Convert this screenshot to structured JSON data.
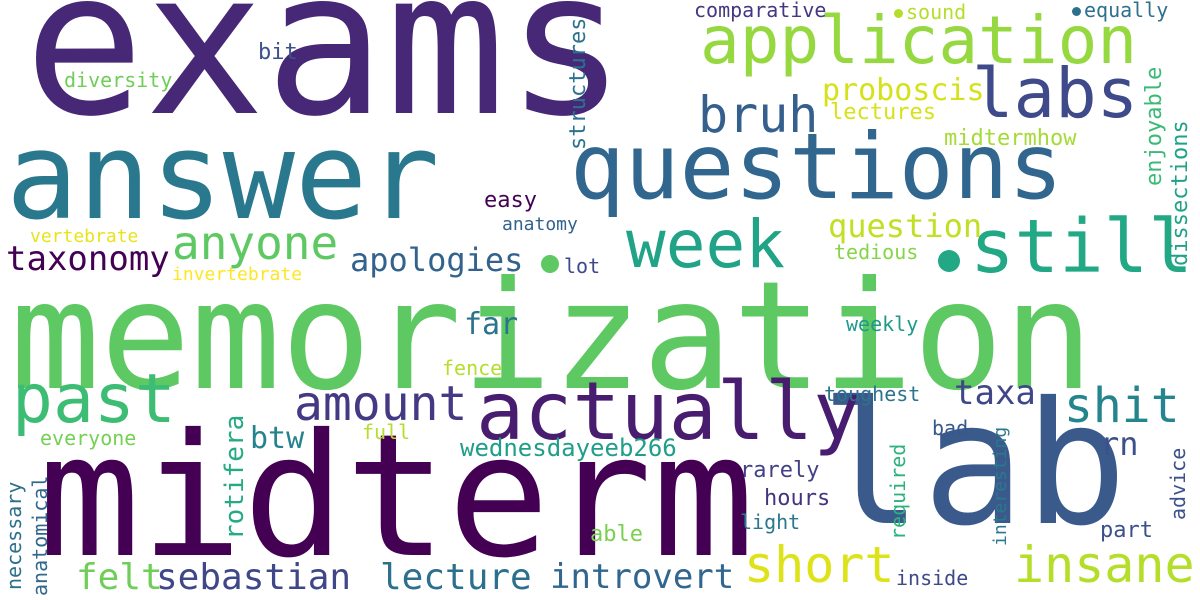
{
  "words": [
    {
      "text": "exams",
      "color": "#472877"
    },
    {
      "text": "answer",
      "color": "#2a788e"
    },
    {
      "text": "memorization",
      "color": "#5ec962"
    },
    {
      "text": "midterm",
      "color": "#440154"
    },
    {
      "text": "lab",
      "color": "#3b5a8c"
    },
    {
      "text": "questions",
      "color": "#31668e"
    },
    {
      "text": "application",
      "color": "#95d840"
    },
    {
      "text": "labs",
      "color": "#3e4a89"
    },
    {
      "text": "still",
      "color": "#22a884"
    },
    {
      "text": "week",
      "color": "#20a386"
    },
    {
      "text": "actually",
      "color": "#481d6f"
    },
    {
      "text": "past",
      "color": "#3dbc74"
    },
    {
      "text": "anyone",
      "color": "#5ec962"
    },
    {
      "text": "bruh",
      "color": "#35608d"
    },
    {
      "text": "amount",
      "color": "#443983"
    },
    {
      "text": "shit",
      "color": "#25858e"
    },
    {
      "text": "insane",
      "color": "#b5de2b"
    },
    {
      "text": "short",
      "color": "#dde318"
    },
    {
      "text": "taxonomy",
      "color": "#440154"
    },
    {
      "text": "apologies",
      "color": "#33638d"
    },
    {
      "text": "question",
      "color": "#c2df23"
    },
    {
      "text": "proboscis",
      "color": "#d5e21a"
    },
    {
      "text": "lecture",
      "color": "#2d708e"
    },
    {
      "text": "introvert",
      "color": "#31668e"
    },
    {
      "text": "sebastian",
      "color": "#3f4788"
    },
    {
      "text": "felt",
      "color": "#6ece58"
    },
    {
      "text": "taxa",
      "color": "#3f4788"
    },
    {
      "text": "far",
      "color": "#2c738e"
    },
    {
      "text": "btw",
      "color": "#26828e"
    },
    {
      "text": "rn",
      "color": "#3b518b"
    },
    {
      "text": "wednesdayeeb266",
      "color": "#1f9e89"
    },
    {
      "text": "lectures",
      "color": "#d8e219"
    },
    {
      "text": "midtermhow",
      "color": "#a5db36"
    },
    {
      "text": "structures",
      "color": "#2c728e"
    },
    {
      "text": "enjoyable",
      "color": "#3aba76"
    },
    {
      "text": "dissections",
      "color": "#1fa287"
    },
    {
      "text": "comparative",
      "color": "#453781"
    },
    {
      "text": "sound",
      "color": "#b5de2b"
    },
    {
      "text": "equally",
      "color": "#2d708e"
    },
    {
      "text": "bit",
      "color": "#3b528b"
    },
    {
      "text": "diversity",
      "color": "#6ece58"
    },
    {
      "text": "easy",
      "color": "#440154"
    },
    {
      "text": "anatomy",
      "color": "#33638d"
    },
    {
      "text": "vertebrate",
      "color": "#e8e419"
    },
    {
      "text": "invertebrate",
      "color": "#fde725"
    },
    {
      "text": "lot",
      "color": "#3e4989"
    },
    {
      "text": "tedious",
      "color": "#86d549"
    },
    {
      "text": "weekly",
      "color": "#1f9a8a"
    },
    {
      "text": "toughest",
      "color": "#2c738e"
    },
    {
      "text": "bad",
      "color": "#38588c"
    },
    {
      "text": "rarely",
      "color": "#424086"
    },
    {
      "text": "hours",
      "color": "#46337f"
    },
    {
      "text": "light",
      "color": "#2a788e"
    },
    {
      "text": "part",
      "color": "#3b518b"
    },
    {
      "text": "advice",
      "color": "#3b528b"
    },
    {
      "text": "interesting",
      "color": "#2a788e"
    },
    {
      "text": "required",
      "color": "#2db27d"
    },
    {
      "text": "rotifera",
      "color": "#25ab82"
    },
    {
      "text": "necessary",
      "color": "#2d708e"
    },
    {
      "text": "anatomical",
      "color": "#31688e"
    },
    {
      "text": "everyone",
      "color": "#75d054"
    },
    {
      "text": "full",
      "color": "#b5de2b"
    },
    {
      "text": "fence",
      "color": "#b5de2b"
    },
    {
      "text": "able",
      "color": "#7ad151"
    },
    {
      "text": "inside",
      "color": "#3e4989"
    }
  ]
}
